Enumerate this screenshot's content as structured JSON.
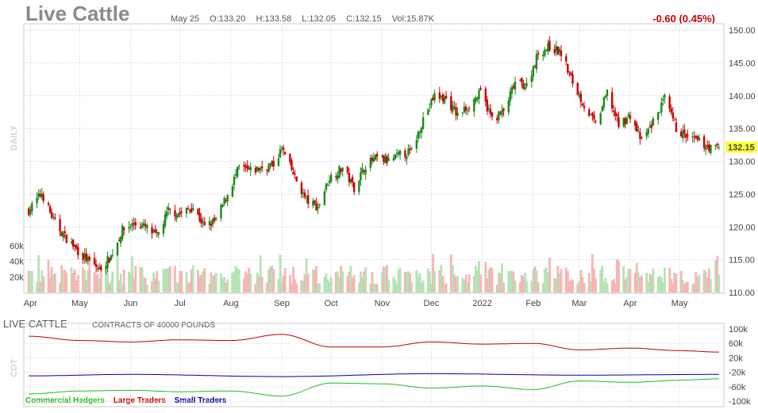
{
  "header": {
    "title": "Live Cattle",
    "date": "May 25",
    "open": "O:133.20",
    "high": "H:133.58",
    "low": "L:132.05",
    "close": "C:132.15",
    "volume": "Vol:15.87K",
    "change": "-0.60 (0.45%)",
    "last_price": "132.15",
    "side_label": "DAILY"
  },
  "cot": {
    "title": "LIVE CATTLE",
    "subtitle": "CONTRACTS OF 40000 POUNDS",
    "side_label": "COT",
    "legend": [
      "Commercial Hedgers",
      "Large Traders",
      "Small Traders"
    ]
  },
  "colors": {
    "up": "#1a8a1a",
    "down": "#cc0000",
    "vol_up": "#b5e3b5",
    "vol_down": "#f7b5b5",
    "large": "#c00000",
    "commercial": "#22bb22",
    "small": "#000099",
    "last_price_bg": "#ffff33"
  },
  "chart_data": [
    {
      "type": "candlestick",
      "title": "Live Cattle",
      "y_ticks": [
        "150.00",
        "145.00",
        "140.00",
        "135.00",
        "130.00",
        "125.00",
        "120.00",
        "115.00",
        "110.00"
      ],
      "ylim": [
        110,
        150
      ],
      "x_ticks": [
        "Apr",
        "May",
        "Jun",
        "Jul",
        "Aug",
        "Sep",
        "Oct",
        "Nov",
        "Dec",
        "2022",
        "Feb",
        "Mar",
        "Apr",
        "May"
      ],
      "volume_ticks": [
        "60k",
        "40k",
        "20k"
      ],
      "close_path": [
        {
          "x": "2021-03-31",
          "y": 122.5
        },
        {
          "x": "2021-04-08",
          "y": 125.2
        },
        {
          "x": "2021-04-15",
          "y": 121.0
        },
        {
          "x": "2021-04-22",
          "y": 118.5
        },
        {
          "x": "2021-05-03",
          "y": 115.5
        },
        {
          "x": "2021-05-13",
          "y": 113.5
        },
        {
          "x": "2021-05-20",
          "y": 115.5
        },
        {
          "x": "2021-05-27",
          "y": 119.5
        },
        {
          "x": "2021-06-03",
          "y": 120.5
        },
        {
          "x": "2021-06-10",
          "y": 120.0
        },
        {
          "x": "2021-06-17",
          "y": 118.5
        },
        {
          "x": "2021-06-24",
          "y": 122.5
        },
        {
          "x": "2021-07-01",
          "y": 122.0
        },
        {
          "x": "2021-07-09",
          "y": 123.0
        },
        {
          "x": "2021-07-16",
          "y": 120.0
        },
        {
          "x": "2021-07-23",
          "y": 121.0
        },
        {
          "x": "2021-07-30",
          "y": 125.0
        },
        {
          "x": "2021-08-06",
          "y": 129.0
        },
        {
          "x": "2021-08-13",
          "y": 128.5
        },
        {
          "x": "2021-08-20",
          "y": 129.0
        },
        {
          "x": "2021-08-27",
          "y": 129.5
        },
        {
          "x": "2021-09-01",
          "y": 132.0
        },
        {
          "x": "2021-09-09",
          "y": 127.5
        },
        {
          "x": "2021-09-16",
          "y": 124.0
        },
        {
          "x": "2021-09-23",
          "y": 123.0
        },
        {
          "x": "2021-09-30",
          "y": 127.5
        },
        {
          "x": "2021-10-08",
          "y": 129.0
        },
        {
          "x": "2021-10-15",
          "y": 126.0
        },
        {
          "x": "2021-10-22",
          "y": 129.5
        },
        {
          "x": "2021-10-29",
          "y": 130.5
        },
        {
          "x": "2021-11-05",
          "y": 130.0
        },
        {
          "x": "2021-11-12",
          "y": 131.0
        },
        {
          "x": "2021-11-19",
          "y": 131.5
        },
        {
          "x": "2021-11-26",
          "y": 136.5
        },
        {
          "x": "2021-12-03",
          "y": 140.0
        },
        {
          "x": "2021-12-10",
          "y": 139.5
        },
        {
          "x": "2021-12-17",
          "y": 137.0
        },
        {
          "x": "2021-12-24",
          "y": 138.5
        },
        {
          "x": "2021-12-31",
          "y": 140.5
        },
        {
          "x": "2022-01-07",
          "y": 136.5
        },
        {
          "x": "2022-01-14",
          "y": 137.5
        },
        {
          "x": "2022-01-21",
          "y": 142.0
        },
        {
          "x": "2022-01-28",
          "y": 141.5
        },
        {
          "x": "2022-02-04",
          "y": 146.5
        },
        {
          "x": "2022-02-11",
          "y": 147.5
        },
        {
          "x": "2022-02-18",
          "y": 146.5
        },
        {
          "x": "2022-02-25",
          "y": 142.0
        },
        {
          "x": "2022-03-04",
          "y": 138.5
        },
        {
          "x": "2022-03-11",
          "y": 135.5
        },
        {
          "x": "2022-03-18",
          "y": 140.5
        },
        {
          "x": "2022-03-25",
          "y": 135.5
        },
        {
          "x": "2022-04-01",
          "y": 137.0
        },
        {
          "x": "2022-04-08",
          "y": 133.0
        },
        {
          "x": "2022-04-15",
          "y": 136.0
        },
        {
          "x": "2022-04-22",
          "y": 139.5
        },
        {
          "x": "2022-04-29",
          "y": 135.0
        },
        {
          "x": "2022-05-06",
          "y": 133.5
        },
        {
          "x": "2022-05-13",
          "y": 133.0
        },
        {
          "x": "2022-05-20",
          "y": 132.0
        },
        {
          "x": "2022-05-25",
          "y": 132.15
        }
      ]
    },
    {
      "type": "line",
      "title": "LIVE CATTLE",
      "y_ticks": [
        "100k",
        "60k",
        "20k",
        "-20k",
        "-60k",
        "-100k"
      ],
      "ylim": [
        -100000,
        100000
      ],
      "series": [
        {
          "name": "Large Traders",
          "values": [
            {
              "x": "2021-03-31",
              "y": 80000
            },
            {
              "x": "2021-05-01",
              "y": 68000
            },
            {
              "x": "2021-06-01",
              "y": 64000
            },
            {
              "x": "2021-07-01",
              "y": 70000
            },
            {
              "x": "2021-08-01",
              "y": 68000
            },
            {
              "x": "2021-09-01",
              "y": 85000
            },
            {
              "x": "2021-10-01",
              "y": 50000
            },
            {
              "x": "2021-11-01",
              "y": 50000
            },
            {
              "x": "2021-12-01",
              "y": 64000
            },
            {
              "x": "2022-01-01",
              "y": 58000
            },
            {
              "x": "2022-02-01",
              "y": 60000
            },
            {
              "x": "2022-03-01",
              "y": 42000
            },
            {
              "x": "2022-04-01",
              "y": 47000
            },
            {
              "x": "2022-05-01",
              "y": 40000
            },
            {
              "x": "2022-05-25",
              "y": 36000
            }
          ]
        },
        {
          "name": "Small Traders",
          "values": [
            {
              "x": "2021-03-31",
              "y": -30000
            },
            {
              "x": "2021-06-01",
              "y": -26000
            },
            {
              "x": "2021-09-01",
              "y": -32000
            },
            {
              "x": "2021-12-01",
              "y": -24000
            },
            {
              "x": "2022-03-01",
              "y": -28000
            },
            {
              "x": "2022-05-25",
              "y": -26000
            }
          ]
        },
        {
          "name": "Commercial Hedgers",
          "values": [
            {
              "x": "2021-03-31",
              "y": -80000
            },
            {
              "x": "2021-05-01",
              "y": -72000
            },
            {
              "x": "2021-06-01",
              "y": -70000
            },
            {
              "x": "2021-07-01",
              "y": -74000
            },
            {
              "x": "2021-08-01",
              "y": -72000
            },
            {
              "x": "2021-09-01",
              "y": -86000
            },
            {
              "x": "2021-10-01",
              "y": -50000
            },
            {
              "x": "2021-11-01",
              "y": -52000
            },
            {
              "x": "2021-12-01",
              "y": -64000
            },
            {
              "x": "2022-01-01",
              "y": -58000
            },
            {
              "x": "2022-02-01",
              "y": -68000
            },
            {
              "x": "2022-03-01",
              "y": -44000
            },
            {
              "x": "2022-04-01",
              "y": -48000
            },
            {
              "x": "2022-05-01",
              "y": -42000
            },
            {
              "x": "2022-05-25",
              "y": -38000
            }
          ]
        }
      ]
    }
  ]
}
